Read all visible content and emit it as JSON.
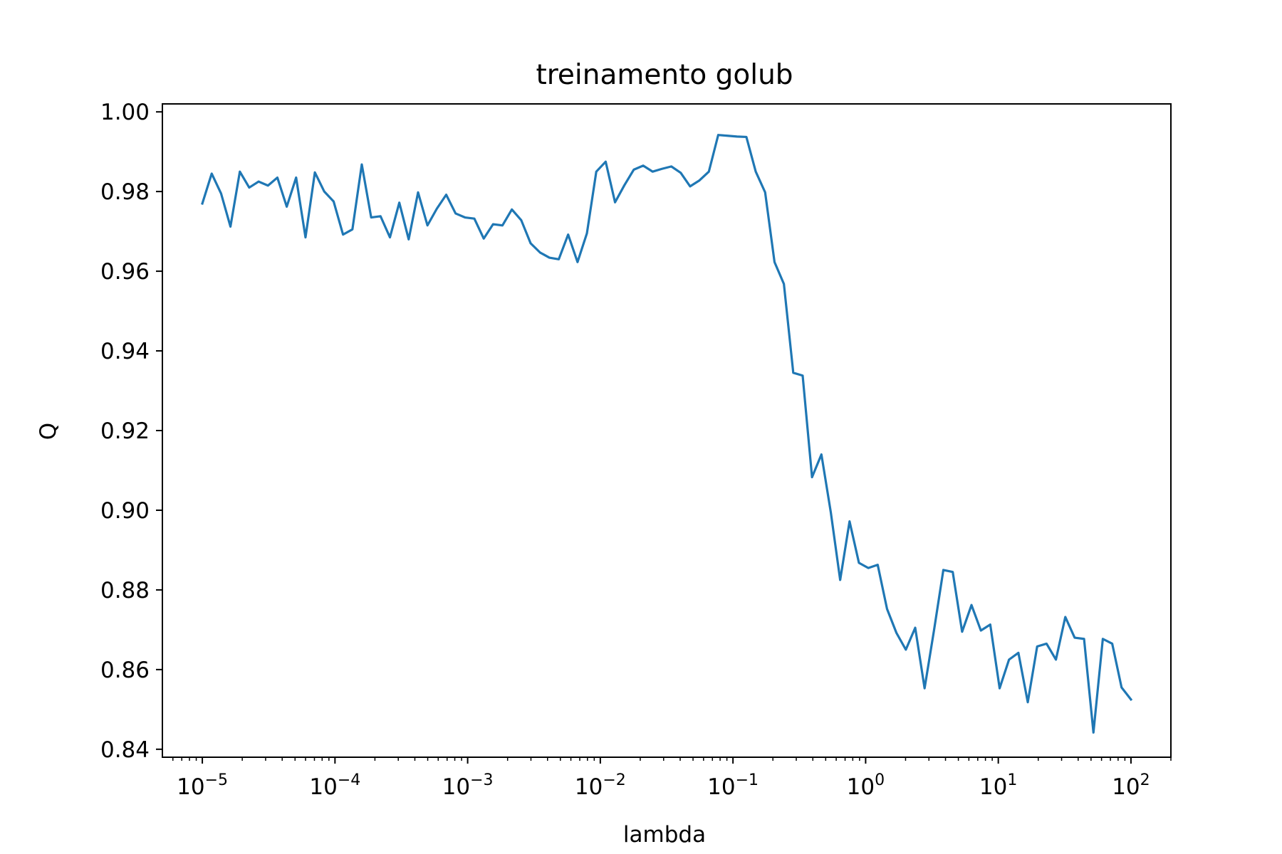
{
  "chart_data": {
    "type": "line",
    "title": "treinamento golub",
    "xlabel": "lambda",
    "ylabel": "Q",
    "xscale": "log",
    "xlim": [
      5e-06,
      200
    ],
    "ylim": [
      0.838,
      1.002
    ],
    "grid": false,
    "x_ticks": [
      {
        "value": 1e-05,
        "base": "10",
        "exp": "−5"
      },
      {
        "value": 0.0001,
        "base": "10",
        "exp": "−4"
      },
      {
        "value": 0.001,
        "base": "10",
        "exp": "−3"
      },
      {
        "value": 0.01,
        "base": "10",
        "exp": "−2"
      },
      {
        "value": 0.1,
        "base": "10",
        "exp": "−1"
      },
      {
        "value": 1,
        "base": "10",
        "exp": "0"
      },
      {
        "value": 10,
        "base": "10",
        "exp": "1"
      },
      {
        "value": 100,
        "base": "10",
        "exp": "2"
      }
    ],
    "y_ticks": [
      {
        "value": 0.84,
        "label": "0.84"
      },
      {
        "value": 0.86,
        "label": "0.86"
      },
      {
        "value": 0.88,
        "label": "0.88"
      },
      {
        "value": 0.9,
        "label": "0.90"
      },
      {
        "value": 0.92,
        "label": "0.92"
      },
      {
        "value": 0.94,
        "label": "0.94"
      },
      {
        "value": 0.96,
        "label": "0.96"
      },
      {
        "value": 0.98,
        "label": "0.98"
      },
      {
        "value": 1.0,
        "label": "1.00"
      }
    ],
    "series": [
      {
        "color": "#1f77b4",
        "x_log10_start": -5,
        "x_log10_end": 2,
        "points": 100,
        "values": [
          0.977,
          0.9845,
          0.9795,
          0.9712,
          0.985,
          0.981,
          0.9825,
          0.9815,
          0.9835,
          0.9762,
          0.9835,
          0.9685,
          0.9848,
          0.98,
          0.9775,
          0.9692,
          0.9705,
          0.9868,
          0.9735,
          0.9738,
          0.9685,
          0.9772,
          0.968,
          0.9798,
          0.9715,
          0.9757,
          0.9792,
          0.9745,
          0.9735,
          0.9732,
          0.9682,
          0.9718,
          0.9715,
          0.9755,
          0.9728,
          0.967,
          0.9647,
          0.9634,
          0.963,
          0.9692,
          0.9623,
          0.9695,
          0.985,
          0.9875,
          0.9773,
          0.9816,
          0.9855,
          0.9865,
          0.985,
          0.9857,
          0.9863,
          0.9847,
          0.9813,
          0.9828,
          0.985,
          0.9942,
          0.994,
          0.9938,
          0.9937,
          0.985,
          0.9798,
          0.9623,
          0.9568,
          0.9345,
          0.9338,
          0.9083,
          0.914,
          0.8995,
          0.8825,
          0.8972,
          0.8868,
          0.8855,
          0.8863,
          0.8752,
          0.8692,
          0.865,
          0.8705,
          0.8553,
          0.8698,
          0.885,
          0.8845,
          0.8695,
          0.8762,
          0.8698,
          0.8713,
          0.8553,
          0.8625,
          0.8642,
          0.8518,
          0.8658,
          0.8665,
          0.8625,
          0.8732,
          0.868,
          0.8677,
          0.8442,
          0.8677,
          0.8665,
          0.8555,
          0.8525
        ]
      }
    ]
  }
}
